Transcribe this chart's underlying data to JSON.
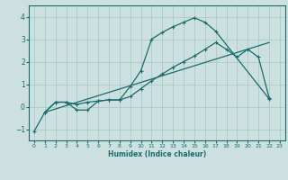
{
  "xlabel": "Humidex (Indice chaleur)",
  "xlim": [
    -0.5,
    23.5
  ],
  "ylim": [
    -1.5,
    4.5
  ],
  "yticks": [
    -1,
    0,
    1,
    2,
    3,
    4
  ],
  "xticks": [
    0,
    1,
    2,
    3,
    4,
    5,
    6,
    7,
    8,
    9,
    10,
    11,
    12,
    13,
    14,
    15,
    16,
    17,
    18,
    19,
    20,
    21,
    22,
    23
  ],
  "bg_color": "#cde0e0",
  "grid_color": "#aacaca",
  "line_color": "#1a6b6b",
  "line1_x": [
    0,
    1,
    2,
    3,
    4,
    5,
    6,
    7,
    8,
    9,
    10,
    11,
    12,
    13,
    14,
    15,
    16,
    17,
    22
  ],
  "line1_y": [
    -1.1,
    -0.25,
    0.2,
    0.2,
    -0.15,
    -0.15,
    0.25,
    0.3,
    0.3,
    0.9,
    1.6,
    3.0,
    3.3,
    3.55,
    3.75,
    3.95,
    3.75,
    3.35,
    0.35
  ],
  "line2_x": [
    1,
    22
  ],
  "line2_y": [
    -0.25,
    2.85
  ],
  "line3_x": [
    1,
    2,
    3,
    4,
    5,
    6,
    7,
    8,
    9,
    10,
    11,
    12,
    13,
    14,
    15,
    16,
    17,
    18,
    19,
    20,
    21,
    22
  ],
  "line3_y": [
    -0.25,
    0.2,
    0.2,
    0.1,
    0.2,
    0.25,
    0.3,
    0.3,
    0.45,
    0.8,
    1.15,
    1.45,
    1.75,
    2.0,
    2.25,
    2.55,
    2.85,
    2.55,
    2.2,
    2.55,
    2.2,
    0.4
  ]
}
